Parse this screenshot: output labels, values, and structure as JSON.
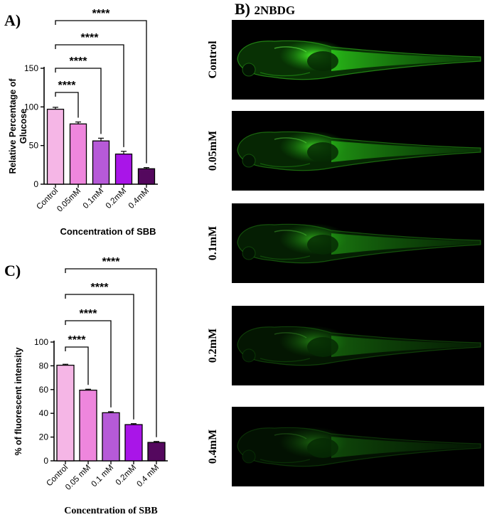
{
  "panels": {
    "a_label": "A)",
    "b_label": "B)",
    "b_title": "2NBDG",
    "c_label": "C)"
  },
  "fish_panels": [
    {
      "label": "Control",
      "intensity": 1.0
    },
    {
      "label": "0.05mM",
      "intensity": 0.78
    },
    {
      "label": "0.1mM",
      "intensity": 0.6
    },
    {
      "label": "0.2mM",
      "intensity": 0.45
    },
    {
      "label": "0.4mM",
      "intensity": 0.35
    }
  ],
  "chart_data": [
    {
      "type": "bar",
      "panel": "A",
      "categories": [
        "Control",
        "0.05mM",
        "0.1mM",
        "0.2mM",
        "0.4mM"
      ],
      "values": [
        97,
        78,
        56,
        39,
        20
      ],
      "errors": [
        2.5,
        2.5,
        3.5,
        3.5,
        1.5
      ],
      "colors": [
        "#f5b6e6",
        "#ee86dd",
        "#b65ad8",
        "#a915e8",
        "#54085e"
      ],
      "xlabel": "Concentration of SBB",
      "ylabel": "Relative Percentage of Glucose",
      "ylim": [
        0,
        150
      ],
      "yticks": [
        0,
        50,
        100,
        150
      ],
      "significance": [
        "****",
        "****",
        "****",
        "****"
      ]
    },
    {
      "type": "bar",
      "panel": "C",
      "categories": [
        "Control",
        "0.05 mM",
        "0.1 mM",
        "0.2mM",
        "0.4 mM"
      ],
      "values": [
        80.5,
        59.5,
        40.5,
        30.5,
        15.5
      ],
      "errors": [
        0.8,
        0.8,
        0.9,
        0.8,
        0.8
      ],
      "colors": [
        "#f5b6e6",
        "#ee86dd",
        "#b65ad8",
        "#a915e8",
        "#54085e"
      ],
      "xlabel": "Concentration of SBB",
      "ylabel": "% of fluorescent intensity",
      "ylim": [
        0,
        100
      ],
      "yticks": [
        0,
        20,
        40,
        60,
        80,
        100
      ],
      "significance": [
        "****",
        "****",
        "****",
        "****"
      ]
    }
  ]
}
